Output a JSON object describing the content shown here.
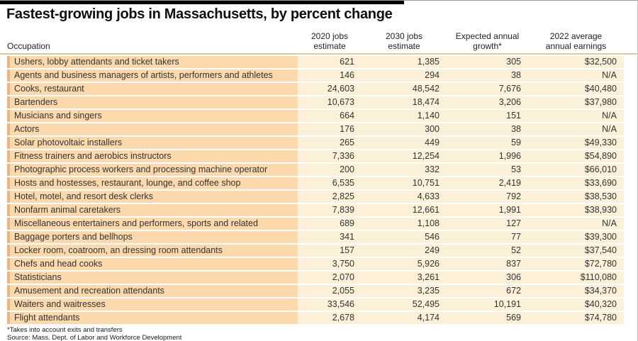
{
  "title": "Fastest-growing jobs in Massachusetts, by percent change",
  "header": {
    "occupation_label": "Occupation",
    "col_2020": "2020 jobs\nestimate",
    "col_2030": "2030 jobs\nestimate",
    "col_growth": "Expected annual\ngrowth*",
    "col_earnings": "2022 average\nannual earnings"
  },
  "footnotes": {
    "note": "*Takes into account exits and transfers",
    "source": "Source: Mass. Dept. of Labor and Workforce Development"
  },
  "colors": {
    "row_occupation_bg": "#fbd9ac",
    "row_accent_strip": "#efb47d",
    "row_numeric_bg": "#fdf0d8",
    "header_divider": "#d9c9a3",
    "top_bar": "#000000"
  },
  "chart_data": {
    "type": "table",
    "title": "Fastest-growing jobs in Massachusetts, by percent change",
    "columns": [
      "Occupation",
      "2020 jobs estimate",
      "2030 jobs estimate",
      "Expected annual growth*",
      "2022 average annual earnings"
    ],
    "rows": [
      [
        "Ushers, lobby attendants and ticket takers",
        "621",
        "1,385",
        "305",
        "$32,500"
      ],
      [
        "Agents and business managers of artists, performers and athletes",
        "146",
        "294",
        "38",
        "N/A"
      ],
      [
        "Cooks, restaurant",
        "24,603",
        "48,542",
        "7,676",
        "$40,480"
      ],
      [
        "Bartenders",
        "10,673",
        "18,474",
        "3,206",
        "$37,980"
      ],
      [
        "Musicians and singers",
        "664",
        "1,140",
        "151",
        "N/A"
      ],
      [
        "Actors",
        "176",
        "300",
        "38",
        "N/A"
      ],
      [
        "Solar photovoltaic installers",
        "265",
        "449",
        "59",
        "$49,330"
      ],
      [
        "Fitness trainers and aerobics instructors",
        "7,336",
        "12,254",
        "1,996",
        "$54,890"
      ],
      [
        "Photographic process workers and processing machine operator",
        "200",
        "332",
        "53",
        "$66,010"
      ],
      [
        "Hosts and hostesses, restaurant, lounge, and coffee shop",
        "6,535",
        "10,751",
        "2,419",
        "$33,690"
      ],
      [
        "Hotel, motel, and resort desk clerks",
        "2,825",
        "4,633",
        "792",
        "$38,530"
      ],
      [
        "Nonfarm animal caretakers",
        "7,839",
        "12,661",
        "1,991",
        "$38,930"
      ],
      [
        "Miscellaneous entertainers and performers, sports and related",
        "689",
        "1,108",
        "127",
        "N/A"
      ],
      [
        "Baggage porters and bellhops",
        "341",
        "546",
        "77",
        "$39,300"
      ],
      [
        "Locker room, coatroom, an dressing room attendants",
        "157",
        "249",
        "52",
        "$37,540"
      ],
      [
        "Chefs and head cooks",
        "3,750",
        "5,926",
        "837",
        "$72,780"
      ],
      [
        "Statisticians",
        "2,070",
        "3,261",
        "306",
        "$110,080"
      ],
      [
        "Amusement and recreation attendants",
        "2,055",
        "3,235",
        "672",
        "$34,370"
      ],
      [
        "Waiters and waitresses",
        "33,546",
        "52,495",
        "10,191",
        "$40,320"
      ],
      [
        "Flight attendants",
        "2,678",
        "4,174",
        "569",
        "$74,780"
      ]
    ]
  }
}
